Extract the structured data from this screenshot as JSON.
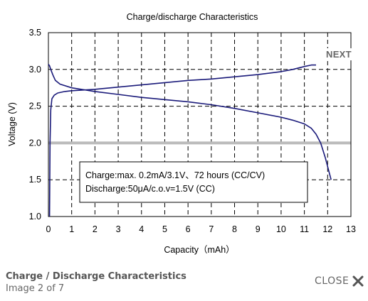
{
  "viewer": {
    "next_label": "NEXT",
    "caption_title": "Charge / Discharge Characteristics",
    "caption_position": "Image 2 of 7",
    "close_label": "CLOSE",
    "close_icon": "close-icon"
  },
  "chart_data": {
    "type": "line",
    "title": "Charge/discharge Characteristics",
    "xlabel": "Capacity（mAh）",
    "ylabel": "Voltage (V)",
    "xlim": [
      0,
      13
    ],
    "ylim": [
      1.0,
      3.5
    ],
    "x_ticks": [
      "0",
      "1",
      "2",
      "3",
      "4",
      "5",
      "6",
      "7",
      "8",
      "9",
      "10",
      "11",
      "12",
      "13"
    ],
    "y_ticks": [
      "1.0",
      "1.5",
      "2.0",
      "2.5",
      "3.0",
      "3.5"
    ],
    "grid": true,
    "grid_style": "dashed",
    "reference_line": {
      "y": 2.0,
      "color": "#bbbbbb"
    },
    "line_color": "#1a1a7a",
    "annotation": [
      "Charge:max. 0.2mA/3.1V、72 hours (CC/CV)",
      "Discharge:50μA/c.o.v=1.5V (CC)"
    ],
    "series": [
      {
        "x": [
          0.05,
          0.07,
          0.1,
          0.15,
          0.25,
          0.4,
          0.7,
          1.0,
          1.5,
          2.0,
          3.0,
          4.0,
          5.0,
          6.0,
          7.0,
          8.0,
          9.0,
          10.0,
          10.5,
          11.0,
          11.3,
          11.5
        ],
        "y": [
          1.0,
          2.0,
          2.45,
          2.6,
          2.65,
          2.68,
          2.7,
          2.71,
          2.72,
          2.73,
          2.76,
          2.79,
          2.82,
          2.85,
          2.87,
          2.9,
          2.93,
          2.97,
          3.0,
          3.04,
          3.06,
          3.06
        ]
      },
      {
        "x": [
          0.0,
          0.05,
          0.1,
          0.2,
          0.3,
          0.5,
          1.0,
          2.0,
          3.0,
          4.0,
          5.0,
          6.0,
          7.0,
          8.0,
          9.0,
          10.0,
          10.5,
          11.0,
          11.3,
          11.5,
          11.7,
          11.9,
          12.05,
          12.15
        ],
        "y": [
          3.07,
          3.05,
          3.0,
          2.92,
          2.85,
          2.8,
          2.75,
          2.7,
          2.66,
          2.62,
          2.59,
          2.56,
          2.52,
          2.47,
          2.41,
          2.35,
          2.31,
          2.26,
          2.2,
          2.12,
          2.0,
          1.8,
          1.62,
          1.5
        ]
      }
    ]
  }
}
